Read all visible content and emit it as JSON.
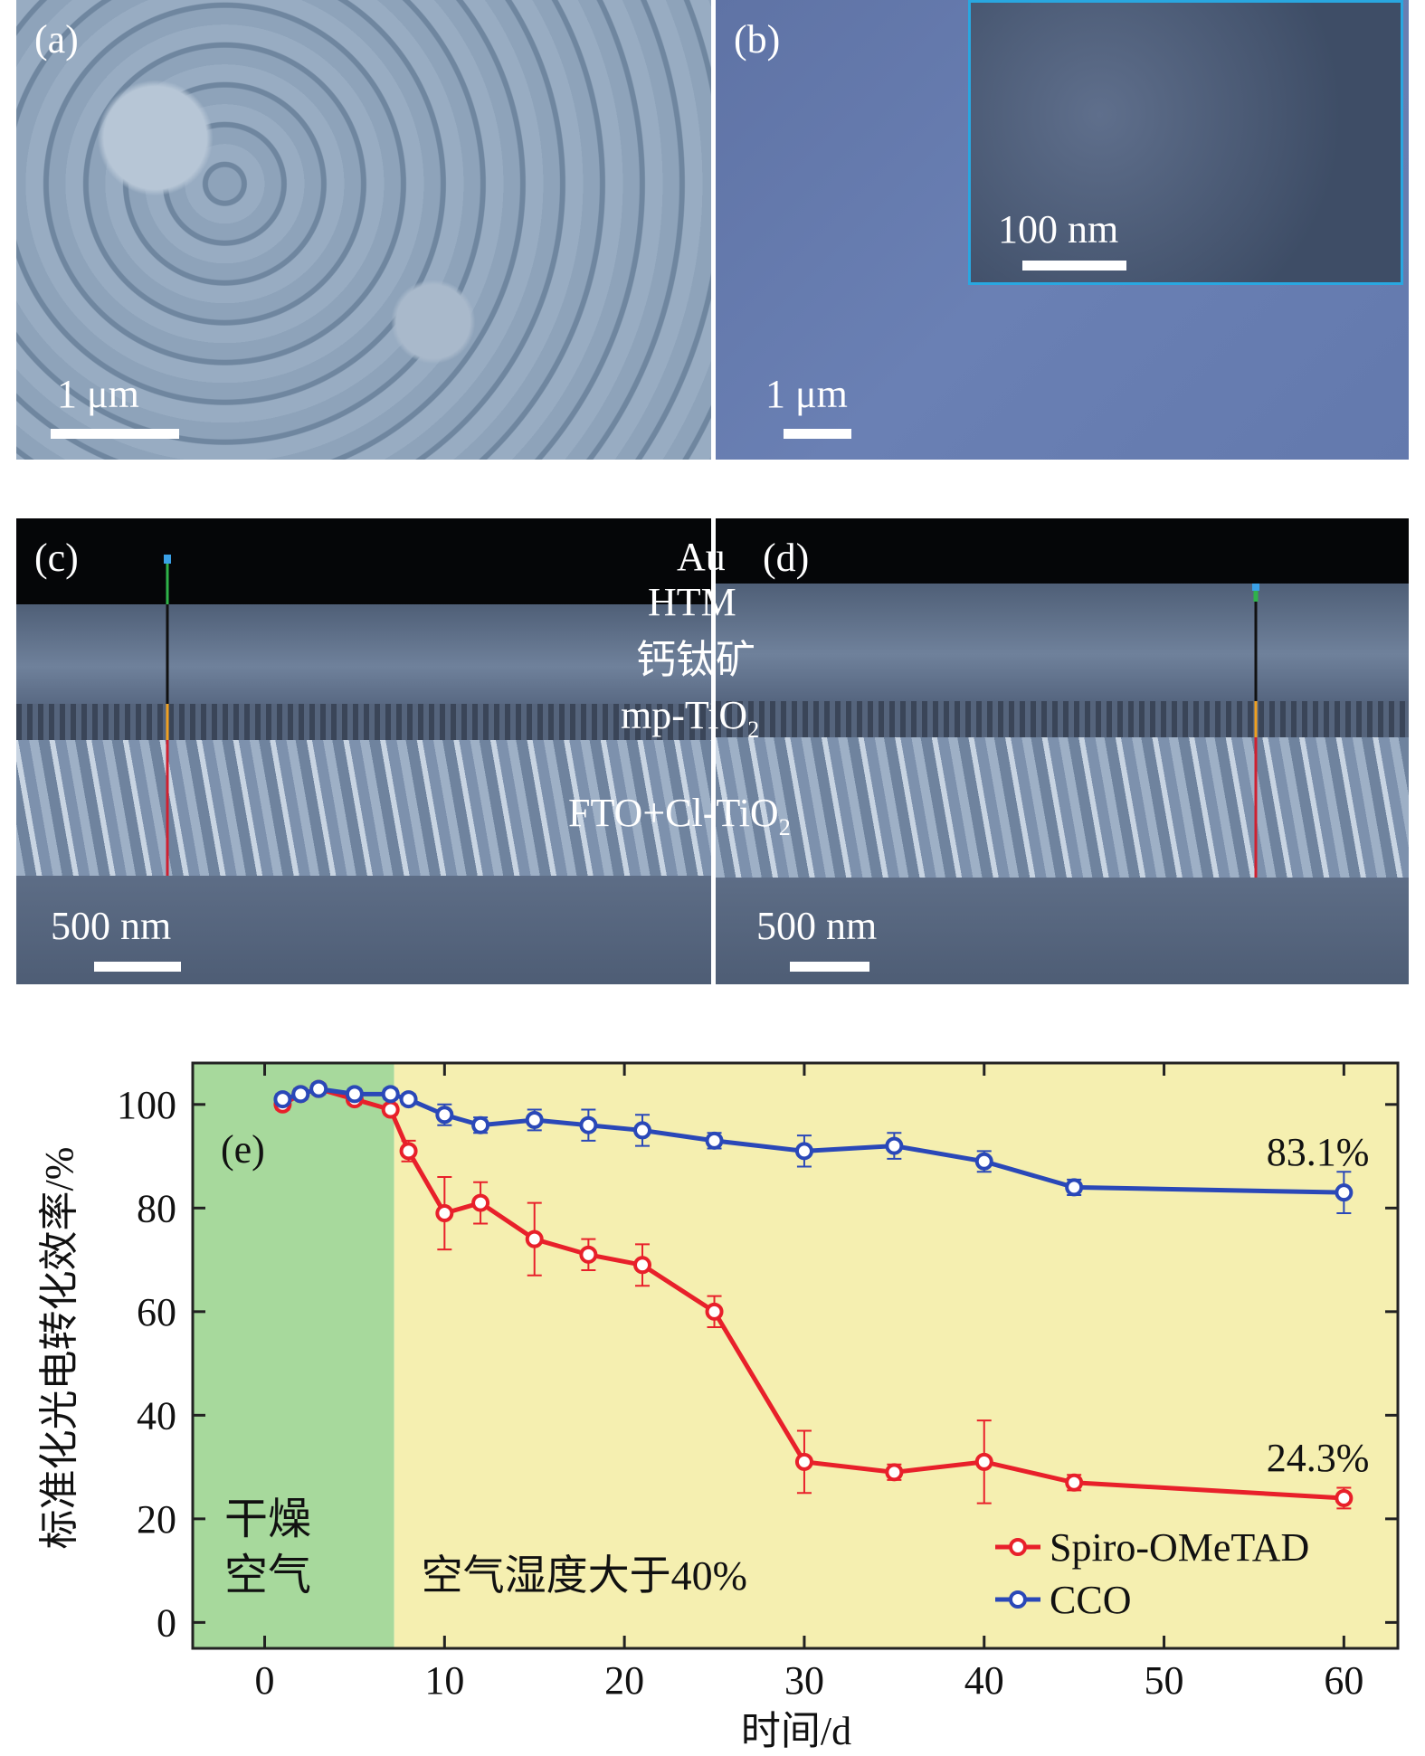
{
  "panels": {
    "a": {
      "label": "(a)",
      "scale": "1 μm"
    },
    "b": {
      "label": "(b)",
      "scale": "1 μm",
      "inset_scale": "100 nm"
    },
    "c": {
      "label": "(c)",
      "scale": "500 nm"
    },
    "d": {
      "label": "(d)",
      "scale": "500 nm"
    },
    "layers": {
      "au": "Au",
      "htm": "HTM",
      "perov": "钙钛矿",
      "mp_base": "mp-TiO",
      "mp_sub": "2",
      "fto_base": "FTO+Cl-TiO",
      "fto_sub": "2"
    }
  },
  "colors": {
    "spiro": "#e8202a",
    "cco": "#2a48b8",
    "dry_bg": "#a7d99c",
    "humid_bg": "#f5efb0",
    "inset_border": "#29a7e0"
  },
  "chart_data": {
    "type": "line",
    "panel_label": "(e)",
    "xlabel": "时间/d",
    "ylabel": "标准化光电转化效率/%",
    "xlim": [
      -4,
      63
    ],
    "ylim": [
      -5,
      108
    ],
    "xticks": [
      0,
      10,
      20,
      30,
      40,
      50,
      60
    ],
    "yticks": [
      0,
      20,
      40,
      60,
      80,
      100
    ],
    "regions": [
      {
        "label_lines": [
          "干燥",
          "空气"
        ],
        "from": -4,
        "to": 7.2,
        "color": "#a7d99c"
      },
      {
        "label": "空气湿度大于40%",
        "from": 7.2,
        "to": 63,
        "color": "#f5efb0"
      }
    ],
    "legend_position": "bottom-right",
    "series": [
      {
        "name": "Spiro-OMeTAD",
        "color": "#e8202a",
        "x": [
          1,
          2,
          3,
          5,
          7,
          8,
          10,
          12,
          15,
          18,
          21,
          25,
          30,
          35,
          40,
          45,
          60
        ],
        "y": [
          100,
          102,
          103,
          101,
          99,
          91,
          79,
          81,
          74,
          71,
          69,
          60,
          31,
          29,
          31,
          27,
          24
        ],
        "err": [
          1,
          1,
          1,
          1,
          1,
          2,
          7,
          4,
          7,
          3,
          4,
          3,
          6,
          1.5,
          8,
          1.5,
          2
        ],
        "end_label": "24.3%"
      },
      {
        "name": "CCO",
        "color": "#2a48b8",
        "x": [
          1,
          2,
          3,
          5,
          7,
          8,
          10,
          12,
          15,
          18,
          21,
          25,
          30,
          35,
          40,
          45,
          60
        ],
        "y": [
          101,
          102,
          103,
          102,
          102,
          101,
          98,
          96,
          97,
          96,
          95,
          93,
          91,
          92,
          89,
          84,
          83
        ],
        "err": [
          1,
          1,
          1,
          1,
          1,
          1,
          2,
          1.5,
          2,
          3,
          3,
          1.5,
          3,
          2.5,
          2,
          1.5,
          4
        ],
        "end_label": "83.1%"
      }
    ]
  }
}
